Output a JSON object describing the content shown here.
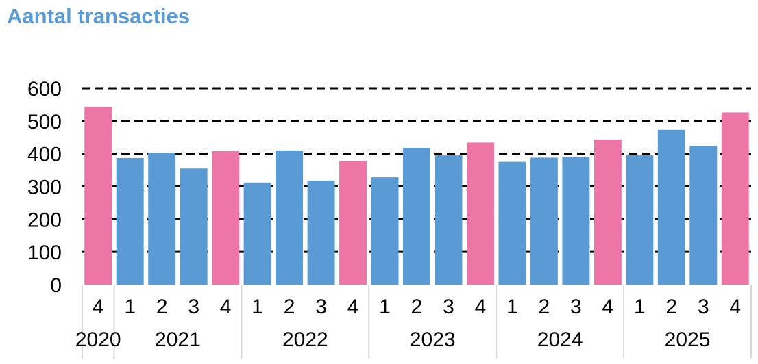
{
  "chart_data": {
    "type": "bar",
    "title": "Aantal transacties",
    "xlabel": "",
    "ylabel": "",
    "ylim": [
      0,
      600
    ],
    "y_ticks": [
      "0",
      "100",
      "200",
      "300",
      "400",
      "500",
      "600"
    ],
    "grid": true,
    "colors": {
      "default": "#5B9BD5",
      "q4": "#EE76A6"
    },
    "categories": [
      "4",
      "1",
      "2",
      "3",
      "4",
      "1",
      "2",
      "3",
      "4",
      "1",
      "2",
      "3",
      "4",
      "1",
      "2",
      "3",
      "4",
      "1",
      "2",
      "3",
      "4"
    ],
    "category_years": [
      "2020",
      "2021",
      "2021",
      "2021",
      "2021",
      "2022",
      "2022",
      "2022",
      "2022",
      "2023",
      "2023",
      "2023",
      "2023",
      "2024",
      "2024",
      "2024",
      "2024",
      "2025",
      "2025",
      "2025",
      "2025"
    ],
    "years": [
      "2020",
      "2021",
      "2022",
      "2023",
      "2024",
      "2025"
    ],
    "values": [
      543,
      387,
      403,
      355,
      408,
      312,
      410,
      318,
      377,
      328,
      418,
      395,
      434,
      375,
      388,
      391,
      443,
      395,
      473,
      423,
      526
    ],
    "highlight": [
      true,
      false,
      false,
      false,
      true,
      false,
      false,
      false,
      true,
      false,
      false,
      false,
      true,
      false,
      false,
      false,
      true,
      false,
      false,
      false,
      true
    ]
  }
}
